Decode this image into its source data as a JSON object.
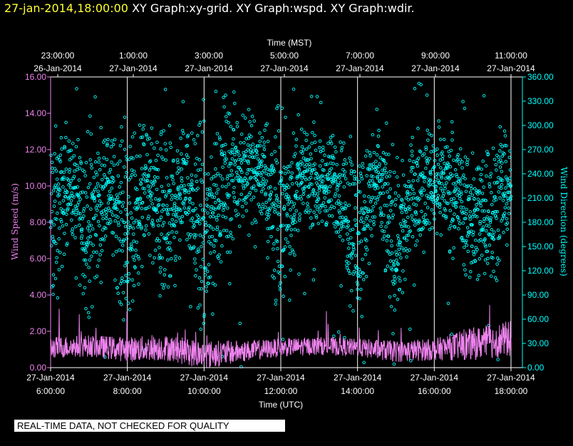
{
  "header": {
    "timestamp": "27-jan-2014,18:00:00",
    "graphs": "XY Graph:xy-grid.  XY Graph:wspd.  XY Graph:wdir."
  },
  "disclaimer": "REAL-TIME DATA, NOT CHECKED FOR QUALITY",
  "colors": {
    "wspd": "#ee82ee",
    "wdir": "#00ffff",
    "axis": "#ffffff",
    "header_ts": "#ffff33",
    "background": "#000000"
  },
  "chart_data": {
    "type": "scatter",
    "xlabel_bottom": "Time (UTC)",
    "xlabel_top": "Time (MST)",
    "ylabel_left": "Wind Speed (m/s)",
    "ylabel_right": "Wind Direction (degrees)",
    "x_range_utc_hours": [
      6.0,
      18.0
    ],
    "ylim_left": [
      0,
      16
    ],
    "ylim_right": [
      0,
      360
    ],
    "grid": "vertical lines every 2 hours",
    "bottom_ticks": [
      {
        "date": "27-Jan-2014",
        "time": "6:00:00"
      },
      {
        "date": "27-Jan-2014",
        "time": "8:00:00"
      },
      {
        "date": "27-Jan-2014",
        "time": "10:00:00"
      },
      {
        "date": "27-Jan-2014",
        "time": "12:00:00"
      },
      {
        "date": "27-Jan-2014",
        "time": "14:00:00"
      },
      {
        "date": "27-Jan-2014",
        "time": "16:00:00"
      },
      {
        "date": "27-Jan-2014",
        "time": "18:00:00"
      }
    ],
    "top_ticks": [
      {
        "time": "23:00:00",
        "date": "26-Jan-2014"
      },
      {
        "time": "1:00:00",
        "date": "27-Jan-2014"
      },
      {
        "time": "3:00:00",
        "date": "27-Jan-2014"
      },
      {
        "time": "5:00:00",
        "date": "27-Jan-2014"
      },
      {
        "time": "7:00:00",
        "date": "27-Jan-2014"
      },
      {
        "time": "9:00:00",
        "date": "27-Jan-2014"
      },
      {
        "time": "11:00:00",
        "date": "27-Jan-2014"
      }
    ],
    "left_ticks": [
      "0.00",
      "2.00",
      "4.00",
      "6.00",
      "8.00",
      "10.00",
      "12.00",
      "14.00",
      "16.00"
    ],
    "right_ticks": [
      "0.00",
      "30.00",
      "60.00",
      "90.00",
      "120.00",
      "150.00",
      "180.00",
      "210.00",
      "240.00",
      "270.00",
      "300.00",
      "330.00",
      "360.00"
    ],
    "series": [
      {
        "key": "wspd",
        "axis": "left",
        "style": "line",
        "color": "#ee82ee",
        "note_hours": [
          6,
          7,
          8,
          9,
          10,
          11,
          12,
          13,
          14,
          15,
          16,
          17,
          18
        ],
        "mean": [
          1.1,
          1.2,
          1.0,
          1.1,
          0.7,
          0.9,
          1.1,
          1.2,
          1.1,
          0.9,
          1.0,
          1.3,
          1.6
        ],
        "spread": [
          0.6,
          0.6,
          0.7,
          0.7,
          0.8,
          0.6,
          0.5,
          0.5,
          0.5,
          0.6,
          0.6,
          0.9,
          1.0
        ]
      },
      {
        "key": "wdir",
        "axis": "right",
        "style": "points",
        "color": "#00ffff",
        "note_hours": [
          6,
          6.5,
          7,
          7.5,
          8,
          8.5,
          9,
          9.5,
          10,
          10.5,
          11,
          11.5,
          12,
          12.5,
          13,
          13.5,
          14,
          14.5,
          15,
          15.5,
          16,
          16.5,
          17,
          17.5,
          18
        ],
        "center": [
          170,
          230,
          175,
          225,
          160,
          230,
          165,
          235,
          150,
          235,
          250,
          245,
          180,
          235,
          230,
          225,
          160,
          235,
          150,
          220,
          235,
          225,
          180,
          200,
          225
        ],
        "spread": [
          60,
          25,
          55,
          30,
          60,
          35,
          55,
          30,
          70,
          45,
          35,
          30,
          60,
          25,
          25,
          30,
          55,
          30,
          55,
          30,
          30,
          35,
          40,
          45,
          25
        ]
      }
    ]
  }
}
